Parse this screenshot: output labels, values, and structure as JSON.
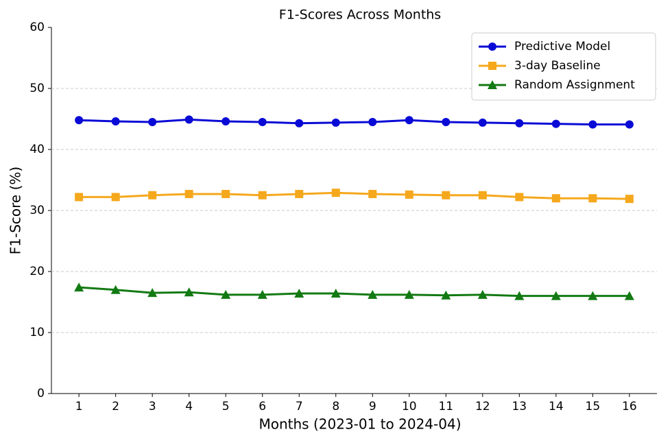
{
  "chart_data": {
    "type": "line",
    "title": "F1-Scores Across Months",
    "xlabel": "Months (2023-01 to 2024-04)",
    "ylabel": "F1-Score (%)",
    "x": [
      1,
      2,
      3,
      4,
      5,
      6,
      7,
      8,
      9,
      10,
      11,
      12,
      13,
      14,
      15,
      16
    ],
    "series": [
      {
        "name": "Predictive Model",
        "color": "#0a0ad6",
        "marker": "circle",
        "values": [
          44.8,
          44.6,
          44.5,
          44.9,
          44.6,
          44.5,
          44.3,
          44.4,
          44.5,
          44.8,
          44.5,
          44.4,
          44.3,
          44.2,
          44.1,
          44.1
        ]
      },
      {
        "name": "3-day Baseline",
        "color": "#f5a81c",
        "marker": "square",
        "values": [
          32.2,
          32.2,
          32.5,
          32.7,
          32.7,
          32.5,
          32.7,
          32.9,
          32.7,
          32.6,
          32.5,
          32.5,
          32.2,
          32.0,
          32.0,
          31.9
        ]
      },
      {
        "name": "Random Assignment",
        "color": "#137a13",
        "marker": "triangle",
        "values": [
          17.4,
          17.0,
          16.5,
          16.6,
          16.2,
          16.2,
          16.4,
          16.4,
          16.2,
          16.2,
          16.1,
          16.2,
          16.0,
          16.0,
          16.0,
          16.0
        ]
      }
    ],
    "xlim": [
      0.25,
      16.75
    ],
    "xticks": [
      1,
      2,
      3,
      4,
      5,
      6,
      7,
      8,
      9,
      10,
      11,
      12,
      13,
      14,
      15,
      16
    ],
    "ylim": [
      0,
      60
    ],
    "yticks": [
      0,
      10,
      20,
      30,
      40,
      50,
      60
    ],
    "grid": true,
    "legend": "upper-right"
  }
}
